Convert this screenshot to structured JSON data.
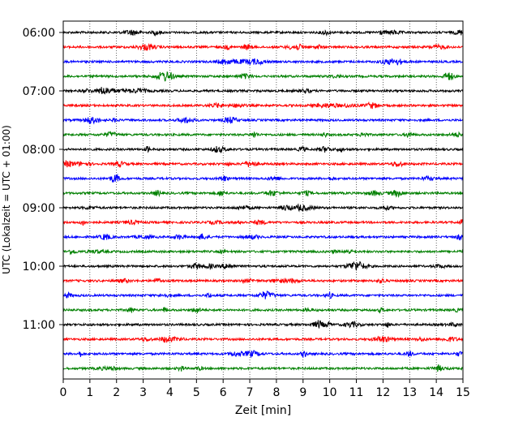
{
  "chart_data": {
    "type": "line",
    "title": "",
    "xlabel": "Zeit  [min]",
    "ylabel": "UTC (Lokalzeit = UTC + 01:00)",
    "xlim": [
      0,
      15
    ],
    "x_ticks": [
      "0",
      "1",
      "2",
      "3",
      "4",
      "5",
      "6",
      "7",
      "8",
      "9",
      "10",
      "11",
      "12",
      "13",
      "14",
      "15"
    ],
    "y_tick_labels": [
      "06:00",
      "07:00",
      "08:00",
      "09:00",
      "10:00",
      "11:00"
    ],
    "grid": "vertical dotted lines at each minute",
    "color_cycle": [
      "#000000",
      "#ff0000",
      "#0000ff",
      "#008000"
    ],
    "series": [
      {
        "start": "06:00",
        "color": "black"
      },
      {
        "start": "06:15",
        "color": "red"
      },
      {
        "start": "06:30",
        "color": "blue"
      },
      {
        "start": "06:45",
        "color": "green"
      },
      {
        "start": "07:00",
        "color": "black"
      },
      {
        "start": "07:15",
        "color": "red"
      },
      {
        "start": "07:30",
        "color": "blue"
      },
      {
        "start": "07:45",
        "color": "green"
      },
      {
        "start": "08:00",
        "color": "black"
      },
      {
        "start": "08:15",
        "color": "red"
      },
      {
        "start": "08:30",
        "color": "blue"
      },
      {
        "start": "08:45",
        "color": "green"
      },
      {
        "start": "09:00",
        "color": "black"
      },
      {
        "start": "09:15",
        "color": "red"
      },
      {
        "start": "09:30",
        "color": "blue"
      },
      {
        "start": "09:45",
        "color": "green"
      },
      {
        "start": "10:00",
        "color": "black"
      },
      {
        "start": "10:15",
        "color": "red"
      },
      {
        "start": "10:30",
        "color": "blue"
      },
      {
        "start": "10:45",
        "color": "green"
      },
      {
        "start": "11:00",
        "color": "black"
      },
      {
        "start": "11:15",
        "color": "red"
      },
      {
        "start": "11:30",
        "color": "blue"
      },
      {
        "start": "11:45",
        "color": "green"
      }
    ]
  }
}
